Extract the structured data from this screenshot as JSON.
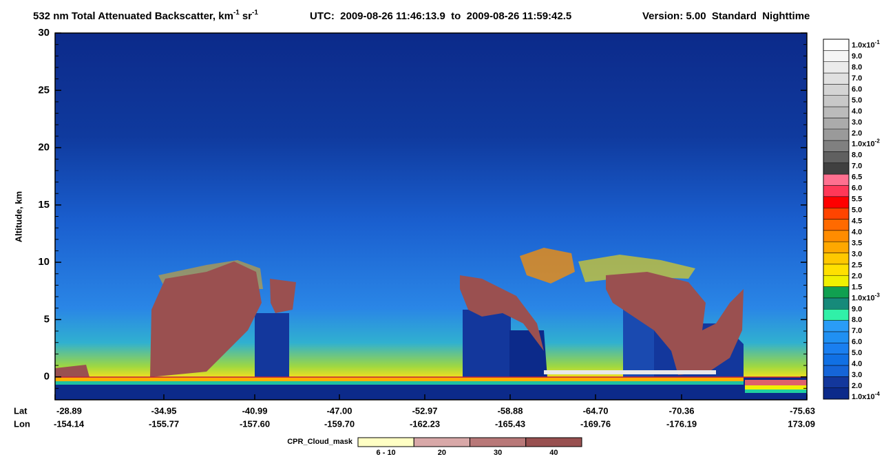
{
  "chart_data": {
    "type": "curtain",
    "title": "532 nm Total Attenuated Backscatter, km",
    "title_exp": "-1",
    "title_unit2": "sr",
    "title_unit2_exp": "-1",
    "utc": "UTC:  2009-08-26 11:46:13.9  to  2009-08-26 11:59:42.5",
    "version": "Version: 5.00  Standard  Nighttime",
    "ylabel": "Altitude, km",
    "ylim": [
      -2,
      30
    ],
    "yticks": [
      0,
      5,
      10,
      15,
      20,
      25,
      30
    ],
    "yminorticks": [
      -1,
      1,
      2,
      3,
      4,
      6,
      7,
      8,
      9,
      11,
      12,
      13,
      14,
      16,
      17,
      18,
      19,
      21,
      22,
      23,
      24,
      26,
      27,
      28,
      29
    ],
    "lat_label": "Lat",
    "lon_label": "Lon",
    "lat": [
      "-28.89",
      "-34.95",
      "-40.99",
      "-47.00",
      "-52.97",
      "-58.88",
      "-64.70",
      "-70.36",
      "-75.63"
    ],
    "lon": [
      "-154.14",
      "-155.77",
      "-157.60",
      "-159.70",
      "-162.23",
      "-165.43",
      "-169.76",
      "-176.19",
      "173.09"
    ],
    "colorbar": {
      "labels": [
        {
          "text": "1.0x10",
          "exp": "-4"
        },
        {
          "text": "2.0"
        },
        {
          "text": "3.0"
        },
        {
          "text": "4.0"
        },
        {
          "text": "5.0"
        },
        {
          "text": "6.0"
        },
        {
          "text": "7.0"
        },
        {
          "text": "8.0"
        },
        {
          "text": "9.0"
        },
        {
          "text": "1.0x10",
          "exp": "-3"
        },
        {
          "text": "1.5"
        },
        {
          "text": "2.0"
        },
        {
          "text": "2.5"
        },
        {
          "text": "3.0"
        },
        {
          "text": "3.5"
        },
        {
          "text": "4.0"
        },
        {
          "text": "4.5"
        },
        {
          "text": "5.0"
        },
        {
          "text": "5.5"
        },
        {
          "text": "6.0"
        },
        {
          "text": "6.5"
        },
        {
          "text": "7.0"
        },
        {
          "text": "8.0"
        },
        {
          "text": "1.0x10",
          "exp": "-2"
        },
        {
          "text": "2.0"
        },
        {
          "text": "3.0"
        },
        {
          "text": "4.0"
        },
        {
          "text": "5.0"
        },
        {
          "text": "6.0"
        },
        {
          "text": "7.0"
        },
        {
          "text": "8.0"
        },
        {
          "text": "9.0"
        },
        {
          "text": "1.0x10",
          "exp": "-1"
        }
      ],
      "colors": [
        "#0c2a8a",
        "#13379c",
        "#1565d8",
        "#1070e4",
        "#1a7ff0",
        "#2090f2",
        "#2a9cf6",
        "#30f0a8",
        "#168a7a",
        "#10a050",
        "#f0f000",
        "#ffe000",
        "#ffc800",
        "#ffa800",
        "#ff8c00",
        "#ff6a00",
        "#ff4400",
        "#ff0000",
        "#ff3858",
        "#ff7090",
        "#404040",
        "#606060",
        "#808080",
        "#9a9a9a",
        "#ababab",
        "#bbbbbb",
        "#c8c8c8",
        "#d4d4d4",
        "#e0e0e0",
        "#ebebeb",
        "#f5f5f5",
        "#ffffff"
      ]
    },
    "cloud_mask": {
      "title": "CPR_Cloud_mask",
      "labels": [
        "6 - 10",
        "20",
        "30",
        "40"
      ],
      "colors": [
        "#ffffc4",
        "#d8a8a8",
        "#b87878",
        "#985050"
      ]
    }
  }
}
